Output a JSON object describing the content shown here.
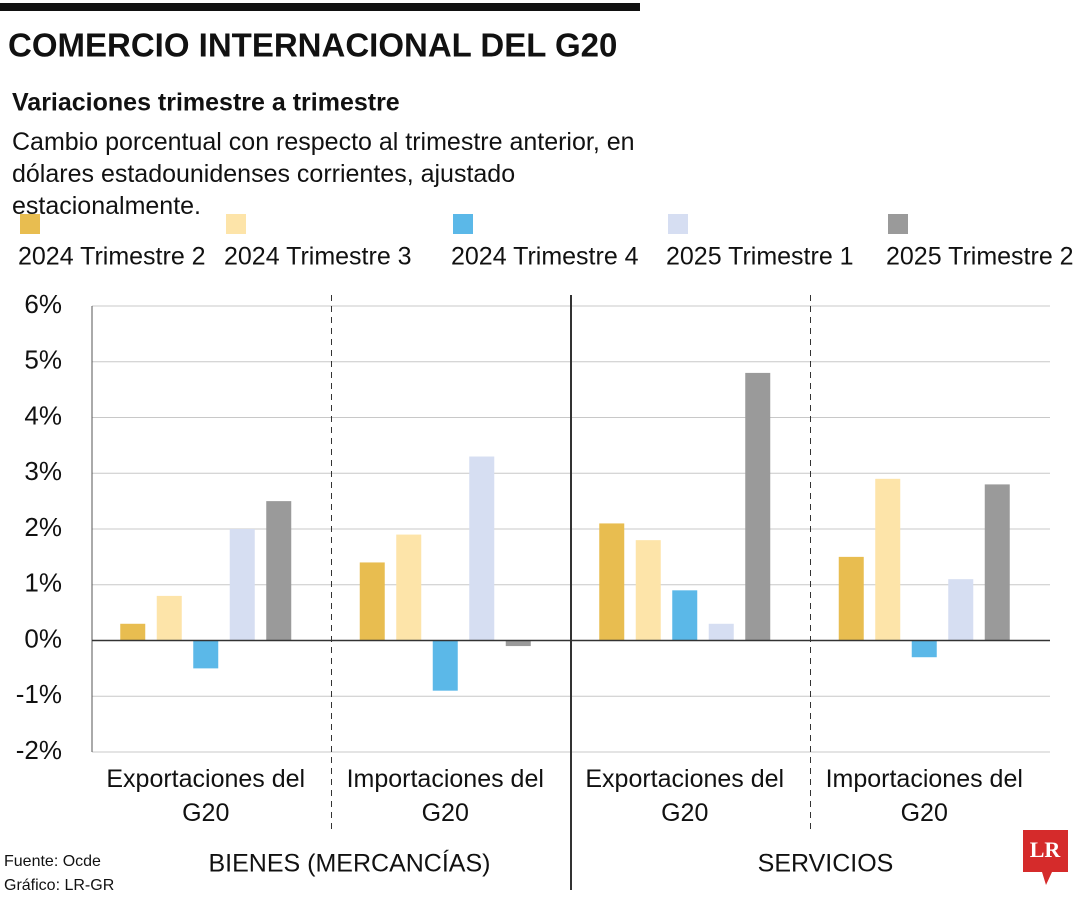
{
  "chart_data": {
    "type": "bar",
    "title": "COMERCIO INTERNACIONAL DEL G20",
    "subtitle": "Variaciones trimestre a trimestre",
    "description": "Cambio porcentual con respecto al trimestre anterior, en dólares estadounidenses corrientes, ajustado estacionalmente.",
    "categories": [
      "Exportaciones del G20",
      "Importaciones del G20",
      "Exportaciones del G20",
      "Importaciones del G20"
    ],
    "groups": [
      "BIENES (MERCANCÍAS)",
      "SERVICIOS"
    ],
    "series": [
      {
        "name": "2024 Trimestre 2",
        "color": "#e8bd50",
        "values": [
          0.3,
          1.4,
          2.1,
          1.5
        ]
      },
      {
        "name": "2024 Trimestre 3",
        "color": "#fde4a9",
        "values": [
          0.8,
          1.9,
          1.8,
          2.9
        ]
      },
      {
        "name": "2024 Trimestre 4",
        "color": "#5bb8e8",
        "values": [
          -0.5,
          -0.9,
          0.9,
          -0.3
        ]
      },
      {
        "name": "2025 Trimestre 1",
        "color": "#d6def2",
        "values": [
          2.0,
          3.3,
          0.3,
          1.1
        ]
      },
      {
        "name": "2025 Trimestre 2",
        "color": "#9a9a9a",
        "values": [
          2.5,
          -0.1,
          4.8,
          2.8
        ]
      }
    ],
    "ylim": [
      -2,
      6
    ],
    "yticks": [
      {
        "value": -2,
        "label": "-2%"
      },
      {
        "value": -1,
        "label": "-1%"
      },
      {
        "value": 0,
        "label": "0%"
      },
      {
        "value": 1,
        "label": "1%"
      },
      {
        "value": 2,
        "label": "2%"
      },
      {
        "value": 3,
        "label": "3%"
      },
      {
        "value": 4,
        "label": "4%"
      },
      {
        "value": 5,
        "label": "5%"
      },
      {
        "value": 6,
        "label": "6%"
      }
    ],
    "grid": true,
    "source": "Fuente: Ocde",
    "credit": "Gráfico: LR-GR",
    "logo": "LR"
  }
}
